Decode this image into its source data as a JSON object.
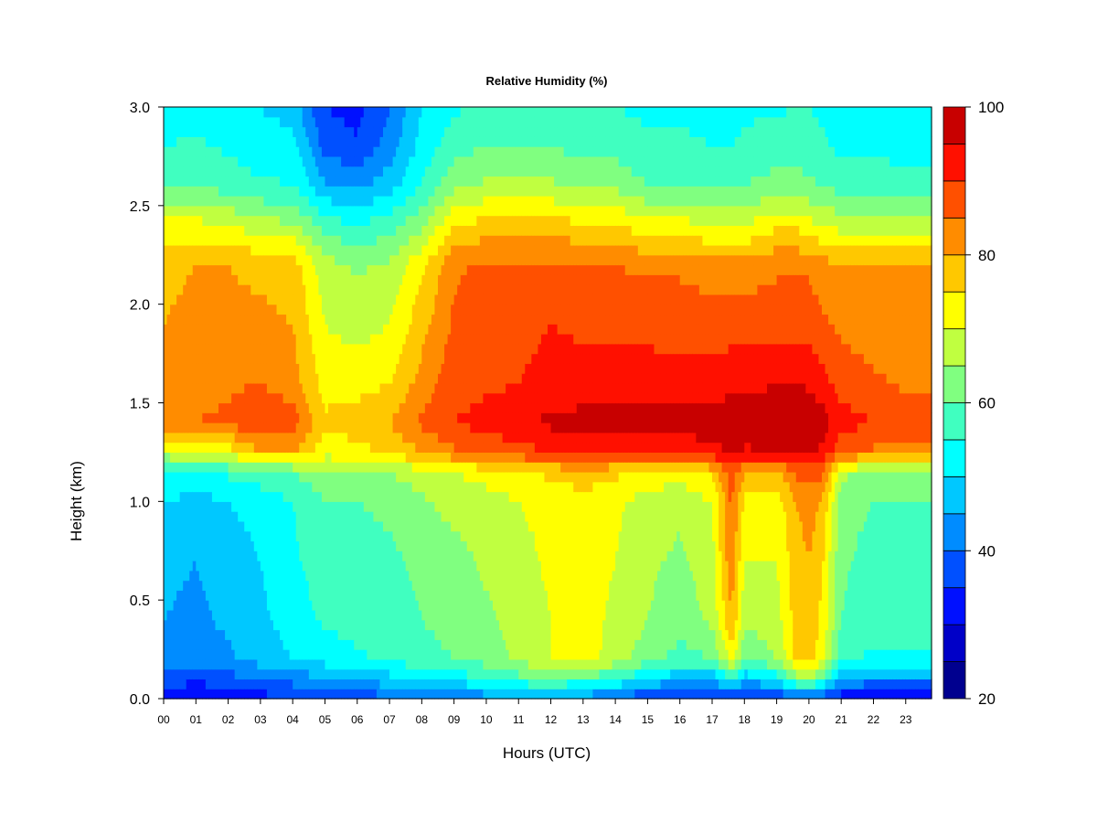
{
  "chart_data": {
    "type": "heatmap",
    "title": "Relative Humidity (%)",
    "xlabel": "Hours (UTC)",
    "ylabel": "Height (km)",
    "x_ticks": [
      "00",
      "01",
      "02",
      "03",
      "04",
      "05",
      "06",
      "07",
      "08",
      "09",
      "10",
      "11",
      "12",
      "13",
      "14",
      "15",
      "16",
      "17",
      "18",
      "19",
      "20",
      "21",
      "22",
      "23"
    ],
    "y_ticks": [
      "0.0",
      "0.5",
      "1.0",
      "1.5",
      "2.0",
      "2.5",
      "3.0"
    ],
    "xlim": [
      0,
      23.8
    ],
    "ylim": [
      0,
      3.0
    ],
    "colorbar": {
      "ticks": [
        "20",
        "40",
        "60",
        "80",
        "100"
      ],
      "range": [
        20,
        100
      ],
      "step": 5,
      "colors": [
        "#00008F",
        "#0000C8",
        "#0010FF",
        "#0050FF",
        "#008CFF",
        "#00C8FF",
        "#00FFFF",
        "#40FFC0",
        "#80FF80",
        "#C0FF40",
        "#FFFF00",
        "#FFC800",
        "#FF8C00",
        "#FF5000",
        "#FF1000",
        "#C80000",
        "#800000"
      ]
    },
    "profile_heights_km": [
      0.0,
      0.1,
      0.2,
      0.4,
      0.7,
      1.0,
      1.15,
      1.25,
      1.4,
      1.6,
      1.9,
      2.2,
      2.4,
      2.6,
      2.8,
      3.0
    ],
    "profiles": [
      {
        "hour": 0,
        "rh": [
          30,
          38,
          44,
          45,
          46,
          50,
          55,
          68,
          84,
          82,
          80,
          79,
          72,
          60,
          55,
          52
        ]
      },
      {
        "hour": 1,
        "rh": [
          30,
          36,
          42,
          44,
          45,
          48,
          54,
          70,
          85,
          83,
          81,
          80,
          72,
          60,
          56,
          52
        ]
      },
      {
        "hour": 2,
        "rh": [
          31,
          38,
          44,
          46,
          47,
          50,
          56,
          72,
          86,
          84,
          81,
          80,
          70,
          58,
          54,
          51
        ]
      },
      {
        "hour": 3,
        "rh": [
          33,
          40,
          47,
          49,
          50,
          52,
          58,
          80,
          90,
          85,
          81,
          79,
          67,
          56,
          52,
          50
        ]
      },
      {
        "hour": 4,
        "rh": [
          34,
          42,
          50,
          52,
          54,
          55,
          60,
          80,
          88,
          82,
          80,
          78,
          66,
          55,
          52,
          48
        ]
      },
      {
        "hour": 5,
        "rh": [
          35,
          44,
          52,
          56,
          58,
          60,
          63,
          72,
          76,
          73,
          70,
          67,
          58,
          46,
          38,
          35
        ]
      },
      {
        "hour": 6,
        "rh": [
          37,
          46,
          54,
          57,
          58,
          60,
          64,
          73,
          78,
          73,
          68,
          64,
          55,
          44,
          36,
          33
        ]
      },
      {
        "hour": 7,
        "rh": [
          38,
          48,
          56,
          58,
          59,
          61,
          65,
          76,
          80,
          75,
          70,
          66,
          58,
          48,
          42,
          40
        ]
      },
      {
        "hour": 8,
        "rh": [
          40,
          50,
          58,
          60,
          61,
          64,
          68,
          80,
          86,
          82,
          78,
          74,
          64,
          55,
          52,
          50
        ]
      },
      {
        "hour": 9,
        "rh": [
          40,
          52,
          60,
          62,
          63,
          67,
          70,
          84,
          90,
          88,
          86,
          84,
          75,
          64,
          58,
          54
        ]
      },
      {
        "hour": 10,
        "rh": [
          42,
          55,
          62,
          64,
          66,
          68,
          72,
          86,
          92,
          89,
          88,
          86,
          77,
          66,
          60,
          56
        ]
      },
      {
        "hour": 11,
        "rh": [
          44,
          58,
          66,
          67,
          68,
          70,
          74,
          88,
          94,
          90,
          88,
          86,
          77,
          66,
          60,
          57
        ]
      },
      {
        "hour": 12,
        "rh": [
          44,
          60,
          70,
          70,
          71,
          72,
          76,
          90,
          96,
          92,
          90,
          86,
          77,
          66,
          60,
          56
        ]
      },
      {
        "hour": 13,
        "rh": [
          42,
          58,
          72,
          72,
          72,
          73,
          78,
          91,
          97,
          92,
          89,
          86,
          76,
          64,
          58,
          55
        ]
      },
      {
        "hour": 14,
        "rh": [
          38,
          55,
          68,
          69,
          70,
          71,
          76,
          91,
          97,
          93,
          89,
          85,
          75,
          64,
          58,
          55
        ]
      },
      {
        "hour": 15,
        "rh": [
          35,
          50,
          62,
          65,
          66,
          68,
          74,
          92,
          98,
          93,
          88,
          84,
          72,
          60,
          56,
          54
        ]
      },
      {
        "hour": 16,
        "rh": [
          33,
          46,
          58,
          62,
          64,
          66,
          72,
          92,
          97,
          92,
          88,
          84,
          72,
          60,
          56,
          54
        ]
      },
      {
        "hour": 17,
        "rh": [
          32,
          45,
          60,
          66,
          68,
          70,
          76,
          93,
          98,
          92,
          88,
          82,
          70,
          59,
          55,
          53
        ]
      },
      {
        "hour": 17.6,
        "rh": [
          35,
          55,
          72,
          80,
          84,
          86,
          88,
          96,
          99,
          93,
          88,
          82,
          70,
          59,
          55,
          53
        ]
      },
      {
        "hour": 18,
        "rh": [
          33,
          46,
          60,
          66,
          70,
          74,
          80,
          94,
          99,
          93,
          88,
          82,
          70,
          60,
          56,
          54
        ]
      },
      {
        "hour": 19,
        "rh": [
          34,
          52,
          65,
          68,
          70,
          72,
          78,
          95,
          100,
          95,
          88,
          84,
          74,
          62,
          58,
          54
        ]
      },
      {
        "hour": 19.6,
        "rh": [
          36,
          62,
          76,
          77,
          78,
          80,
          86,
          96,
          100,
          95,
          88,
          84,
          74,
          62,
          58,
          55
        ]
      },
      {
        "hour": 20,
        "rh": [
          37,
          64,
          78,
          78,
          80,
          82,
          88,
          96,
          100,
          94,
          88,
          84,
          72,
          61,
          57,
          55
        ]
      },
      {
        "hour": 20.4,
        "rh": [
          35,
          58,
          72,
          74,
          76,
          80,
          86,
          94,
          98,
          92,
          86,
          82,
          70,
          60,
          56,
          54
        ]
      },
      {
        "hour": 21,
        "rh": [
          32,
          44,
          56,
          60,
          61,
          62,
          66,
          86,
          92,
          88,
          84,
          80,
          68,
          58,
          54,
          52
        ]
      },
      {
        "hour": 22,
        "rh": [
          32,
          42,
          54,
          57,
          58,
          60,
          64,
          84,
          90,
          86,
          82,
          80,
          68,
          58,
          54,
          52
        ]
      },
      {
        "hour": 23,
        "rh": [
          32,
          42,
          54,
          57,
          58,
          60,
          64,
          82,
          88,
          84,
          82,
          80,
          68,
          57,
          53,
          51
        ]
      },
      {
        "hour": 23.8,
        "rh": [
          32,
          42,
          54,
          57,
          58,
          60,
          64,
          82,
          88,
          84,
          82,
          80,
          68,
          57,
          53,
          51
        ]
      }
    ]
  }
}
